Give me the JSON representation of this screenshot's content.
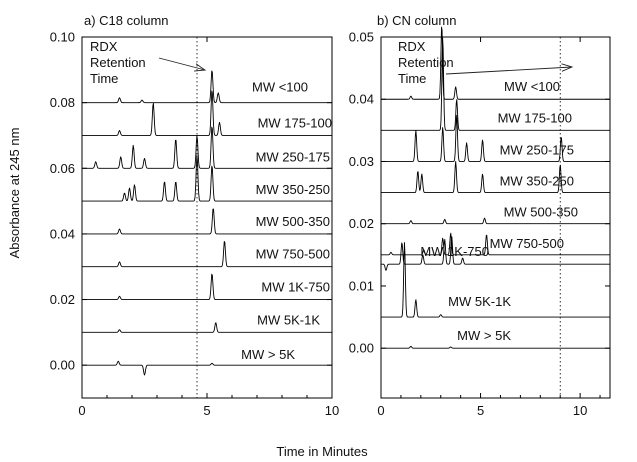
{
  "figure": {
    "xlabel": "Time in Minutes",
    "ylabel": "Absorbance at 245 nm"
  },
  "chart_data": [
    {
      "type": "line",
      "title": "a)  C18 column",
      "xlim": [
        0,
        10
      ],
      "ylim": [
        -0.01,
        0.1
      ],
      "xticks": [
        "0",
        "5",
        "10"
      ],
      "yticks": [
        "0.00",
        "0.02",
        "0.04",
        "0.06",
        "0.08",
        "0.10"
      ],
      "ytick_values": [
        0,
        0.02,
        0.04,
        0.06,
        0.08,
        0.1
      ],
      "retention_marker": {
        "text": [
          "RDX",
          "Retention",
          "Time"
        ],
        "x": 4.6
      },
      "series": [
        {
          "name": "MW <100",
          "baseline": 0.08,
          "peaks": [
            [
              1.5,
              0.0015
            ],
            [
              2.4,
              0.0008
            ],
            [
              5.2,
              0.01
            ],
            [
              5.45,
              0.003
            ]
          ]
        },
        {
          "name": "MW 175-100",
          "baseline": 0.07,
          "peaks": [
            [
              1.5,
              0.0015
            ],
            [
              2.85,
              0.01
            ],
            [
              5.2,
              0.014
            ],
            [
              5.5,
              0.004
            ]
          ]
        },
        {
          "name": "MW 250-175",
          "baseline": 0.06,
          "peaks": [
            [
              0.55,
              0.002
            ],
            [
              1.55,
              0.0035
            ],
            [
              2.05,
              0.007
            ],
            [
              2.5,
              0.003
            ],
            [
              3.75,
              0.009
            ],
            [
              4.6,
              0.01
            ],
            [
              5.2,
              0.013
            ]
          ]
        },
        {
          "name": "MW 350-250",
          "baseline": 0.05,
          "peaks": [
            [
              1.7,
              0.0025
            ],
            [
              1.9,
              0.004
            ],
            [
              2.1,
              0.005
            ],
            [
              3.3,
              0.006
            ],
            [
              3.75,
              0.006
            ],
            [
              4.6,
              0.014
            ],
            [
              5.2,
              0.011
            ]
          ]
        },
        {
          "name": "MW 500-350",
          "baseline": 0.04,
          "peaks": [
            [
              1.5,
              0.0015
            ],
            [
              5.25,
              0.008
            ]
          ]
        },
        {
          "name": "MW 750-500",
          "baseline": 0.03,
          "peaks": [
            [
              1.5,
              0.0015
            ],
            [
              5.7,
              0.008
            ]
          ]
        },
        {
          "name": "MW 1K-750",
          "baseline": 0.02,
          "peaks": [
            [
              1.5,
              0.001
            ],
            [
              5.2,
              0.008
            ]
          ]
        },
        {
          "name": "MW 5K-1K",
          "baseline": 0.01,
          "peaks": [
            [
              1.5,
              0.0008
            ],
            [
              5.35,
              0.003
            ]
          ]
        },
        {
          "name": "MW  > 5K",
          "baseline": 0.0,
          "peaks": [
            [
              1.45,
              0.0012
            ],
            [
              2.5,
              -0.003
            ],
            [
              5.2,
              0.0006
            ]
          ]
        }
      ]
    },
    {
      "type": "line",
      "title": "b)  CN column",
      "xlim": [
        0,
        11.5
      ],
      "ylim": [
        -0.008,
        0.05
      ],
      "xticks": [
        "0",
        "5",
        "10"
      ],
      "yticks": [
        "0.00",
        "0.01",
        "0.02",
        "0.03",
        "0.04",
        "0.05"
      ],
      "ytick_values": [
        0,
        0.01,
        0.02,
        0.03,
        0.04,
        0.05
      ],
      "retention_marker": {
        "text": [
          "RDX",
          "Retention",
          "Time"
        ],
        "x": 9.0
      },
      "series": [
        {
          "name": "MW <100",
          "baseline": 0.04,
          "peaks": [
            [
              1.5,
              0.0005
            ],
            [
              3.05,
              0.012
            ],
            [
              3.75,
              0.002
            ]
          ]
        },
        {
          "name": "MW 175-100",
          "baseline": 0.035,
          "peaks": [
            [
              3.1,
              0.015
            ],
            [
              3.8,
              0.005
            ]
          ]
        },
        {
          "name": "MW 250-175",
          "baseline": 0.03,
          "peaks": [
            [
              1.75,
              0.005
            ],
            [
              3.1,
              0.0055
            ],
            [
              3.8,
              0.0075
            ],
            [
              4.3,
              0.003
            ],
            [
              5.1,
              0.0035
            ],
            [
              9.05,
              0.004
            ]
          ]
        },
        {
          "name": "MW 350-250",
          "baseline": 0.025,
          "peaks": [
            [
              1.85,
              0.0035
            ],
            [
              2.05,
              0.003
            ],
            [
              3.75,
              0.005
            ],
            [
              5.1,
              0.003
            ],
            [
              9.0,
              0.0045
            ]
          ]
        },
        {
          "name": "MW 500-350",
          "baseline": 0.02,
          "peaks": [
            [
              1.5,
              0.0005
            ],
            [
              3.2,
              0.0007
            ],
            [
              5.2,
              0.0009
            ]
          ]
        },
        {
          "name": "MW    750-500",
          "baseline": 0.015,
          "peaks": [
            [
              0.5,
              0.0004
            ],
            [
              2.15,
              0.0008
            ],
            [
              3.1,
              0.0027
            ],
            [
              3.5,
              0.0035
            ],
            [
              5.3,
              0.0033
            ]
          ]
        },
        {
          "name": "MW 1K-750",
          "baseline": 0.0135,
          "peaks": [
            [
              0.25,
              -0.001
            ],
            [
              1.05,
              0.0035
            ],
            [
              2.1,
              0.0015
            ],
            [
              3.2,
              0.004
            ],
            [
              3.55,
              0.0045
            ],
            [
              4.1,
              0.001
            ]
          ]
        },
        {
          "name": "MW 5K-1K",
          "baseline": 0.005,
          "peaks": [
            [
              1.18,
              0.012
            ],
            [
              1.75,
              0.0028
            ],
            [
              3.0,
              0.0004
            ]
          ]
        },
        {
          "name": "MW  > 5K",
          "baseline": 0.0,
          "peaks": [
            [
              1.5,
              0.0003
            ],
            [
              3.5,
              0.0002
            ]
          ]
        }
      ]
    }
  ]
}
